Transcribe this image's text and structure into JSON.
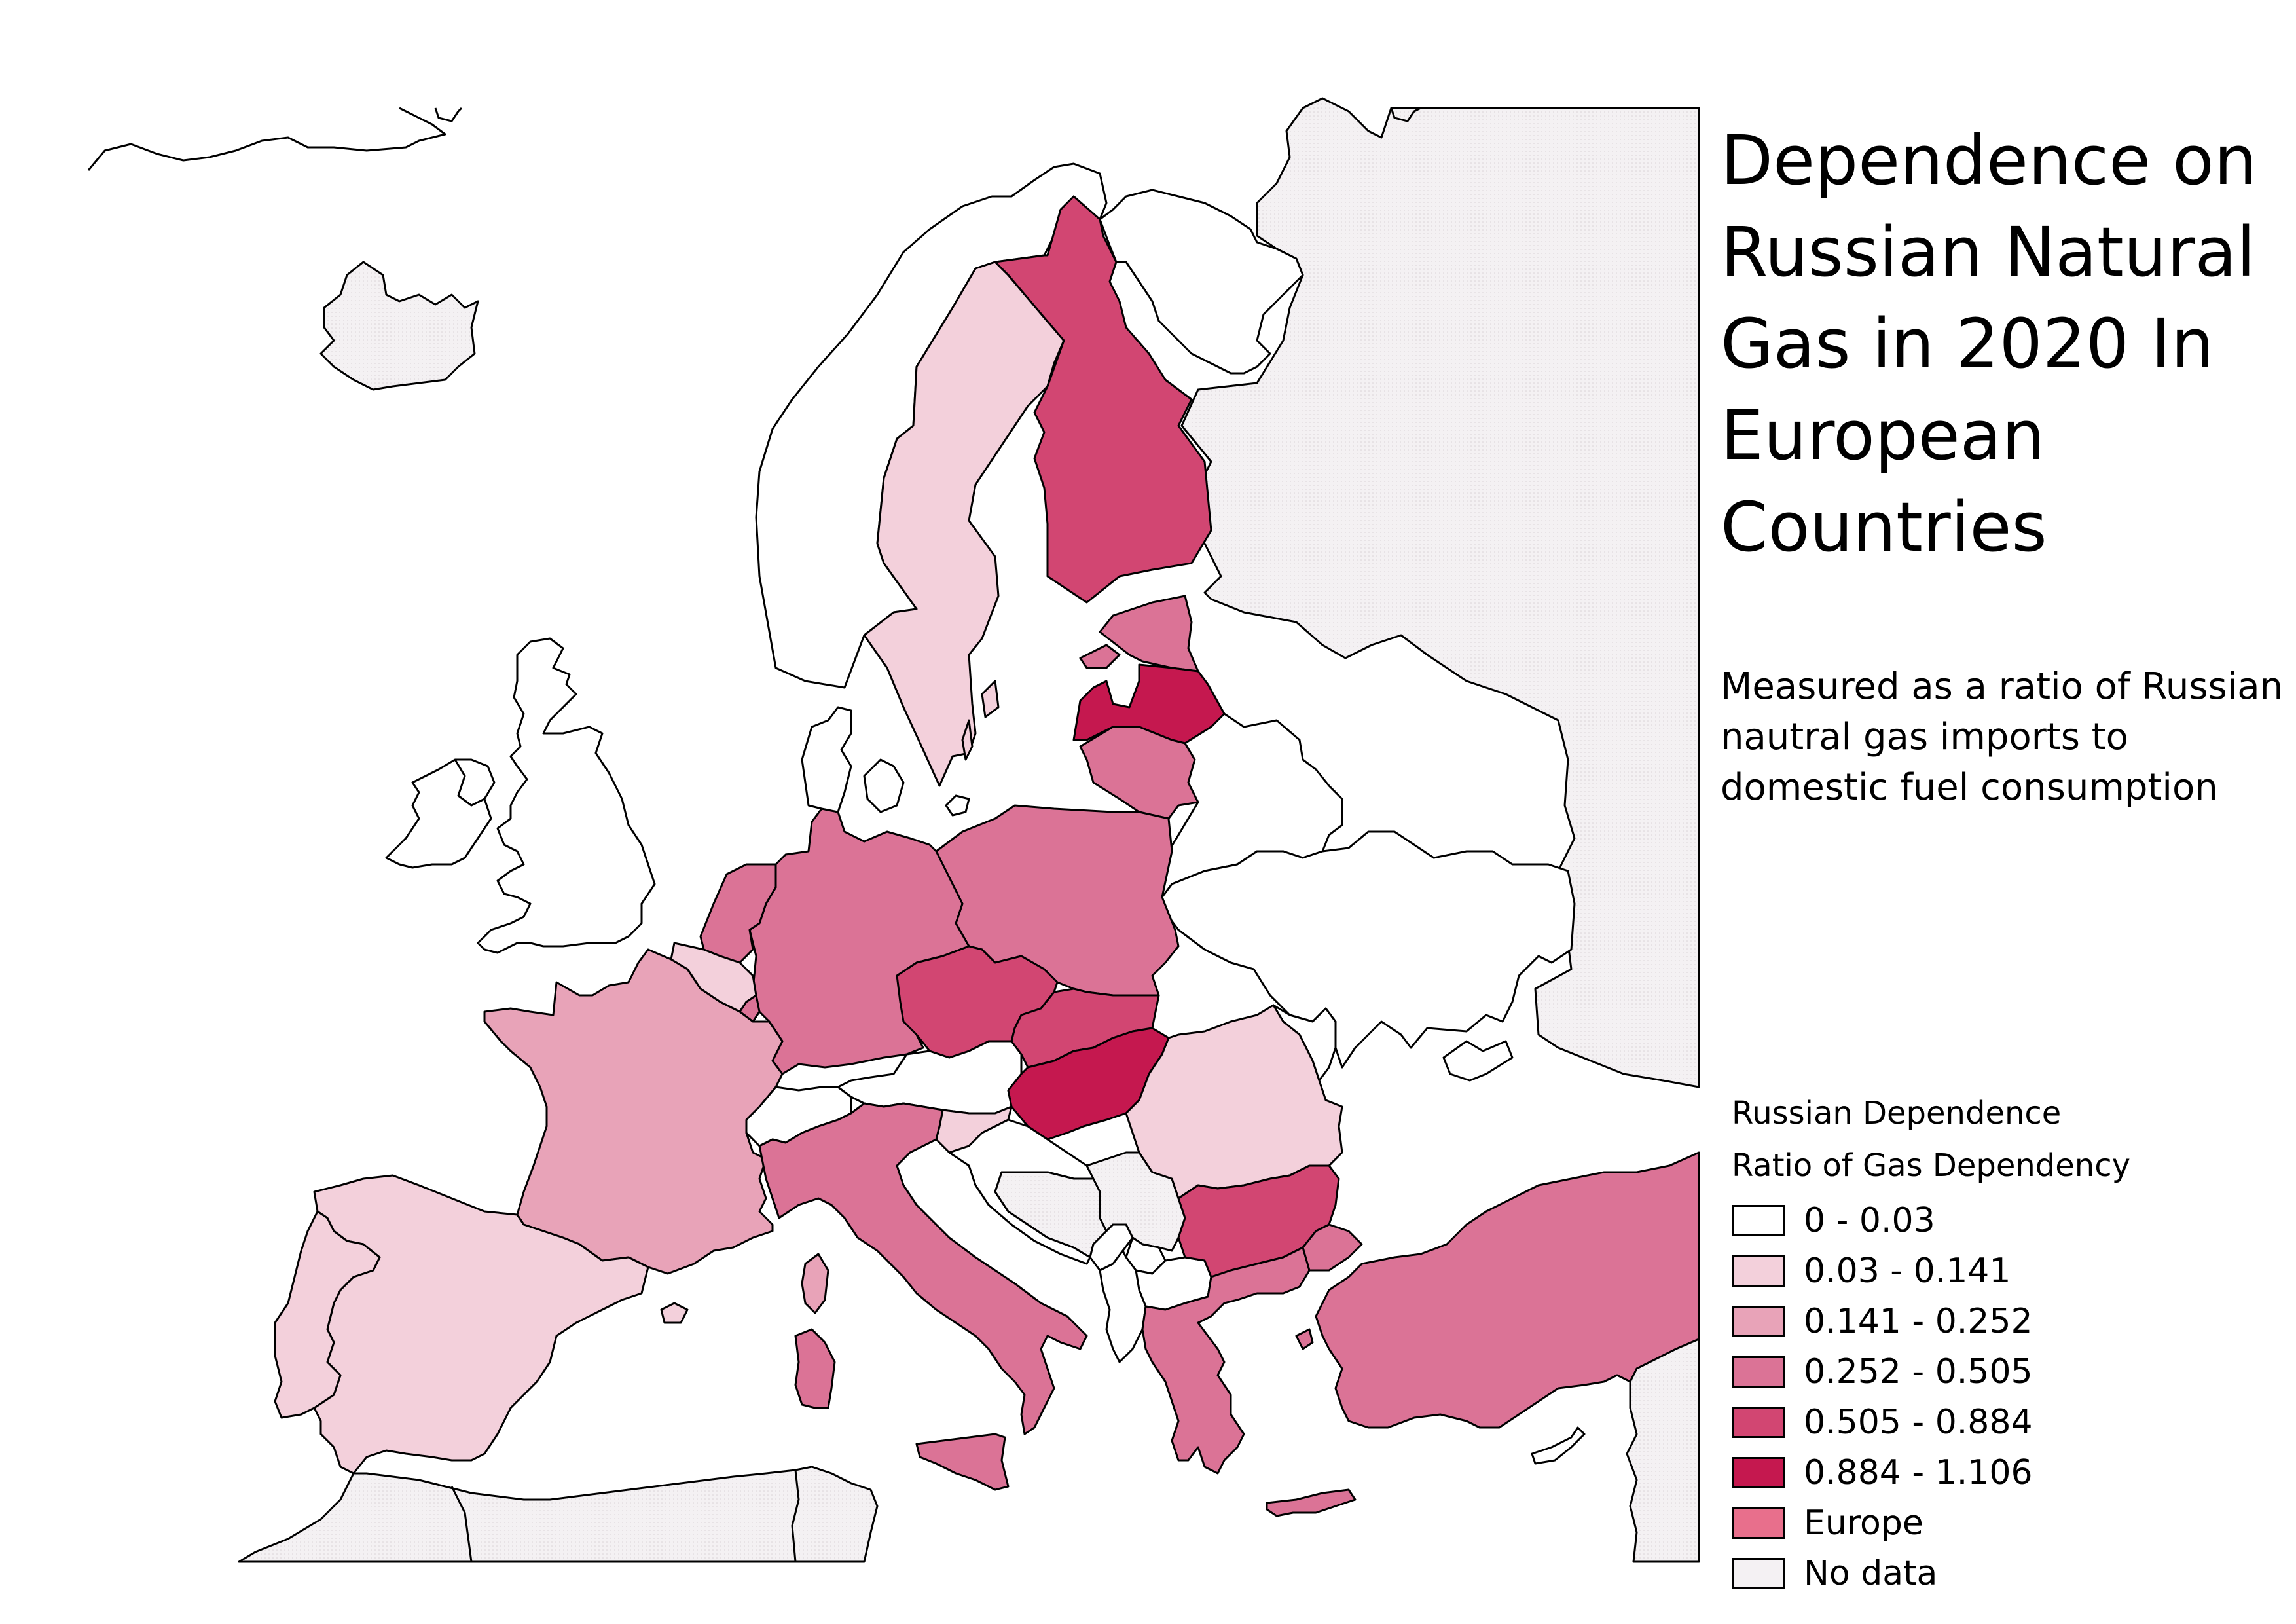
{
  "title": "Dependence on Russian Natural Gas in 2020 In European Countries",
  "subtitle": "Measured as a ratio of Russian nautral gas imports to domestic fuel consumption",
  "legend": {
    "header": "Russian Dependence",
    "subheader": "Ratio of Gas Dependency",
    "items": [
      {
        "label": "0 - 0.03",
        "color": "#ffffff"
      },
      {
        "label": "0.03 - 0.141",
        "color": "#f3d0db"
      },
      {
        "label": "0.141 - 0.252",
        "color": "#e8a3b8"
      },
      {
        "label": "0.252 - 0.505",
        "color": "#db7396"
      },
      {
        "label": "0.505 - 0.884",
        "color": "#d24672"
      },
      {
        "label": "0.884 - 1.106",
        "color": "#c5184f"
      },
      {
        "label": "Europe",
        "color": "#e86f8c"
      },
      {
        "label": "No data",
        "color": "#f4f1f3"
      }
    ]
  },
  "countries": [
    {
      "name": "Iceland",
      "class": "No data"
    },
    {
      "name": "Norway",
      "class": "0 - 0.03"
    },
    {
      "name": "Sweden",
      "class": "0.03 - 0.141"
    },
    {
      "name": "Finland",
      "class": "0.505 - 0.884"
    },
    {
      "name": "Estonia",
      "class": "0.252 - 0.505"
    },
    {
      "name": "Latvia",
      "class": "0.884 - 1.106"
    },
    {
      "name": "Lithuania",
      "class": "0.252 - 0.505"
    },
    {
      "name": "Denmark",
      "class": "0 - 0.03"
    },
    {
      "name": "United Kingdom",
      "class": "0 - 0.03"
    },
    {
      "name": "Ireland",
      "class": "0 - 0.03"
    },
    {
      "name": "Netherlands",
      "class": "0.252 - 0.505"
    },
    {
      "name": "Belgium",
      "class": "0.03 - 0.141"
    },
    {
      "name": "Luxembourg",
      "class": "0.252 - 0.505"
    },
    {
      "name": "Germany",
      "class": "0.252 - 0.505"
    },
    {
      "name": "Poland",
      "class": "0.252 - 0.505"
    },
    {
      "name": "Belarus",
      "class": "0 - 0.03"
    },
    {
      "name": "Ukraine",
      "class": "0 - 0.03"
    },
    {
      "name": "Moldova",
      "class": "0 - 0.03"
    },
    {
      "name": "Russia",
      "class": "No data"
    },
    {
      "name": "France",
      "class": "0.141 - 0.252"
    },
    {
      "name": "Spain",
      "class": "0.03 - 0.141"
    },
    {
      "name": "Portugal",
      "class": "0.03 - 0.141"
    },
    {
      "name": "Switzerland",
      "class": "0 - 0.03"
    },
    {
      "name": "Austria",
      "class": "0 - 0.03"
    },
    {
      "name": "Czechia",
      "class": "0.505 - 0.884"
    },
    {
      "name": "Slovakia",
      "class": "0.505 - 0.884"
    },
    {
      "name": "Hungary",
      "class": "0.884 - 1.106"
    },
    {
      "name": "Slovenia",
      "class": "0.03 - 0.141"
    },
    {
      "name": "Croatia",
      "class": "0 - 0.03"
    },
    {
      "name": "Bosnia and Herzegovina",
      "class": "No data"
    },
    {
      "name": "Serbia",
      "class": "No data"
    },
    {
      "name": "Montenegro",
      "class": "0 - 0.03"
    },
    {
      "name": "Kosovo",
      "class": "0 - 0.03"
    },
    {
      "name": "North Macedonia",
      "class": "0 - 0.03"
    },
    {
      "name": "Albania",
      "class": "0 - 0.03"
    },
    {
      "name": "Romania",
      "class": "0.03 - 0.141"
    },
    {
      "name": "Bulgaria",
      "class": "0.505 - 0.884"
    },
    {
      "name": "Greece",
      "class": "0.252 - 0.505"
    },
    {
      "name": "Italy",
      "class": "0.252 - 0.505"
    },
    {
      "name": "Turkey",
      "class": "0.252 - 0.505"
    },
    {
      "name": "Cyprus",
      "class": "0 - 0.03"
    },
    {
      "name": "North Africa",
      "class": "No data"
    },
    {
      "name": "Middle East",
      "class": "No data"
    }
  ]
}
